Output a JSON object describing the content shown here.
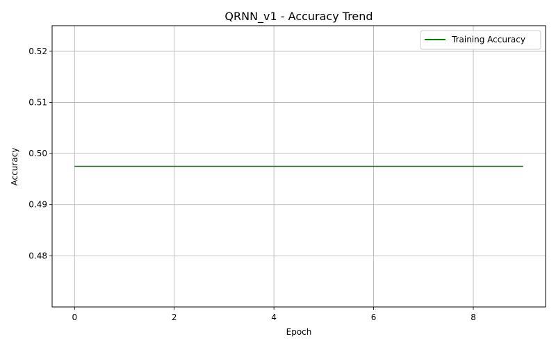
{
  "chart_data": {
    "type": "line",
    "title": "QRNN_v1 - Accuracy Trend",
    "xlabel": "Epoch",
    "ylabel": "Accuracy",
    "xlim": [
      -0.45,
      9.45
    ],
    "ylim": [
      0.47,
      0.525
    ],
    "x_ticks": [
      0,
      2,
      4,
      6,
      8
    ],
    "y_ticks": [
      0.48,
      0.49,
      0.5,
      0.51,
      0.52
    ],
    "x_tick_labels": [
      "0",
      "2",
      "4",
      "6",
      "8"
    ],
    "y_tick_labels": [
      "0.48",
      "0.49",
      "0.50",
      "0.51",
      "0.52"
    ],
    "grid": true,
    "legend_position": "top-right",
    "series": [
      {
        "name": "Training Accuracy",
        "color": "#008000",
        "x": [
          0,
          1,
          2,
          3,
          4,
          5,
          6,
          7,
          8,
          9
        ],
        "values": [
          0.4975,
          0.4975,
          0.4975,
          0.4975,
          0.4975,
          0.4975,
          0.4975,
          0.4975,
          0.4975,
          0.4975
        ]
      }
    ]
  }
}
